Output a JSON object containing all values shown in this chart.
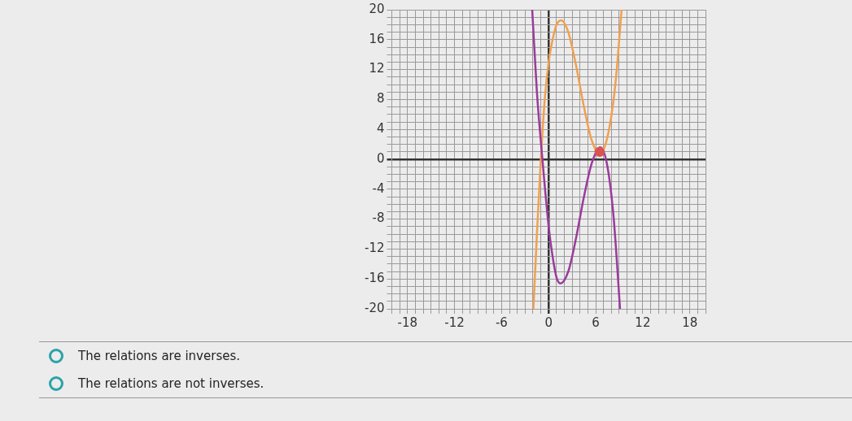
{
  "chart_data": {
    "type": "line",
    "xlim": [
      -20,
      20
    ],
    "ylim": [
      -20,
      20
    ],
    "xticks": [
      {
        "value": -20,
        "label": null
      },
      {
        "value": -19,
        "label": null
      },
      -18,
      {
        "value": -17,
        "label": null
      },
      {
        "value": -16,
        "label": null
      },
      {
        "value": -15,
        "label": null
      },
      {
        "value": -14,
        "label": null
      },
      {
        "value": -13,
        "label": null
      },
      -12,
      {
        "value": -11,
        "label": null
      },
      {
        "value": -10,
        "label": null
      },
      {
        "value": -9,
        "label": null
      },
      {
        "value": -8,
        "label": null
      },
      {
        "value": -7,
        "label": null
      },
      -6,
      {
        "value": -5,
        "label": null
      },
      {
        "value": -4,
        "label": null
      },
      {
        "value": -3,
        "label": null
      },
      {
        "value": -2,
        "label": null
      },
      {
        "value": -1,
        "label": null
      },
      0,
      {
        "value": 1,
        "label": null
      },
      {
        "value": 2,
        "label": null
      },
      {
        "value": 3,
        "label": null
      },
      {
        "value": 4,
        "label": null
      },
      {
        "value": 5,
        "label": null
      },
      6,
      {
        "value": 7,
        "label": null
      },
      {
        "value": 8,
        "label": null
      },
      {
        "value": 9,
        "label": null
      },
      {
        "value": 10,
        "label": null
      },
      {
        "value": 11,
        "label": null
      },
      12,
      {
        "value": 13,
        "label": null
      },
      {
        "value": 14,
        "label": null
      },
      {
        "value": 15,
        "label": null
      },
      {
        "value": 16,
        "label": null
      },
      {
        "value": 17,
        "label": null
      },
      18,
      {
        "value": 19,
        "label": null
      },
      {
        "value": 20,
        "label": null
      }
    ],
    "yticks": [
      -20,
      {
        "value": -19,
        "label": null
      },
      {
        "value": -18,
        "label": null
      },
      {
        "value": -17,
        "label": null
      },
      -16,
      {
        "value": -15,
        "label": null
      },
      {
        "value": -14,
        "label": null
      },
      {
        "value": -13,
        "label": null
      },
      -12,
      {
        "value": -11,
        "label": null
      },
      {
        "value": -10,
        "label": null
      },
      {
        "value": -9,
        "label": null
      },
      -8,
      {
        "value": -7,
        "label": null
      },
      {
        "value": -6,
        "label": null
      },
      {
        "value": -5,
        "label": null
      },
      -4,
      {
        "value": -3,
        "label": null
      },
      {
        "value": -2,
        "label": null
      },
      {
        "value": -1,
        "label": null
      },
      0,
      {
        "value": 1,
        "label": null
      },
      {
        "value": 2,
        "label": null
      },
      {
        "value": 3,
        "label": null
      },
      4,
      {
        "value": 5,
        "label": null
      },
      {
        "value": 6,
        "label": null
      },
      {
        "value": 7,
        "label": null
      },
      8,
      {
        "value": 9,
        "label": null
      },
      {
        "value": 10,
        "label": null
      },
      {
        "value": 11,
        "label": null
      },
      12,
      {
        "value": 13,
        "label": null
      },
      {
        "value": 14,
        "label": null
      },
      {
        "value": 15,
        "label": null
      },
      16,
      {
        "value": 17,
        "label": null
      },
      {
        "value": 18,
        "label": null
      },
      {
        "value": 19,
        "label": null
      },
      20
    ],
    "grid": true,
    "legend": false,
    "marker": "none",
    "line_style": "solid",
    "series": [
      {
        "color": "#f0a050",
        "x": [
          -1.95,
          -1.5,
          -1,
          -0.5,
          0,
          0.5,
          1,
          1.6,
          2.5,
          3.5,
          4.5,
          5.5,
          6.5,
          7.5,
          8.5,
          9.3
        ],
        "values": [
          -20,
          -10,
          0,
          8,
          13,
          16,
          18,
          18.6,
          17,
          12.5,
          7,
          2.5,
          0.8,
          3,
          10,
          20
        ]
      },
      {
        "color": "#9b3b9b",
        "x": [
          -2.1,
          -1.5,
          -0.8,
          0,
          0.5,
          1,
          1.5,
          2.5,
          3.5,
          4.5,
          5.5,
          6.6,
          7.5,
          8.3,
          9.1
        ],
        "values": [
          20,
          9,
          0,
          -9,
          -13,
          -15.8,
          -16.6,
          -15,
          -10.5,
          -5,
          -0.5,
          1.6,
          -1,
          -8,
          -20
        ]
      },
      {
        "type": "scatter",
        "marker": "circle",
        "color": "#d9534f",
        "x": [
          6.5
        ],
        "values": [
          1
        ]
      }
    ],
    "annotations": [
      "The relations are inverses.",
      "The relations are not inverses."
    ]
  }
}
